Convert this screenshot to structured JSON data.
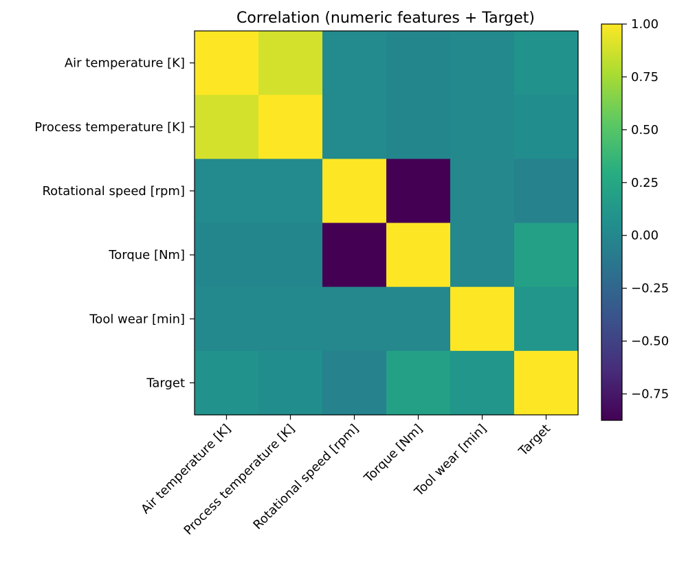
{
  "chart_data": {
    "type": "heatmap",
    "title": "Correlation (numeric features + Target)",
    "xlabel": "",
    "ylabel": "",
    "rows": [
      "Air temperature [K]",
      "Process temperature [K]",
      "Rotational speed [rpm]",
      "Torque [Nm]",
      "Tool wear [min]",
      "Target"
    ],
    "columns": [
      "Air temperature [K]",
      "Process temperature [K]",
      "Rotational speed [rpm]",
      "Torque [Nm]",
      "Tool wear [min]",
      "Target"
    ],
    "values": [
      [
        1.0,
        0.88,
        0.02,
        -0.01,
        0.01,
        0.08
      ],
      [
        0.88,
        1.0,
        0.02,
        -0.01,
        0.01,
        0.04
      ],
      [
        0.02,
        0.02,
        1.0,
        -0.88,
        0.0,
        -0.04
      ],
      [
        -0.01,
        -0.01,
        -0.88,
        1.0,
        -0.0,
        0.19
      ],
      [
        0.01,
        0.01,
        0.0,
        -0.0,
        1.0,
        0.11
      ],
      [
        0.08,
        0.04,
        -0.04,
        0.19,
        0.11,
        1.0
      ]
    ],
    "colormap": "viridis",
    "colorbar": {
      "vmin": -0.875,
      "vmax": 1.0,
      "ticks": [
        1.0,
        0.75,
        0.5,
        0.25,
        0.0,
        -0.25,
        -0.5,
        -0.75
      ],
      "tick_labels": [
        "1.00",
        "0.75",
        "0.50",
        "0.25",
        "0.00",
        "−0.25",
        "−0.50",
        "−0.75"
      ]
    },
    "grid": false
  }
}
